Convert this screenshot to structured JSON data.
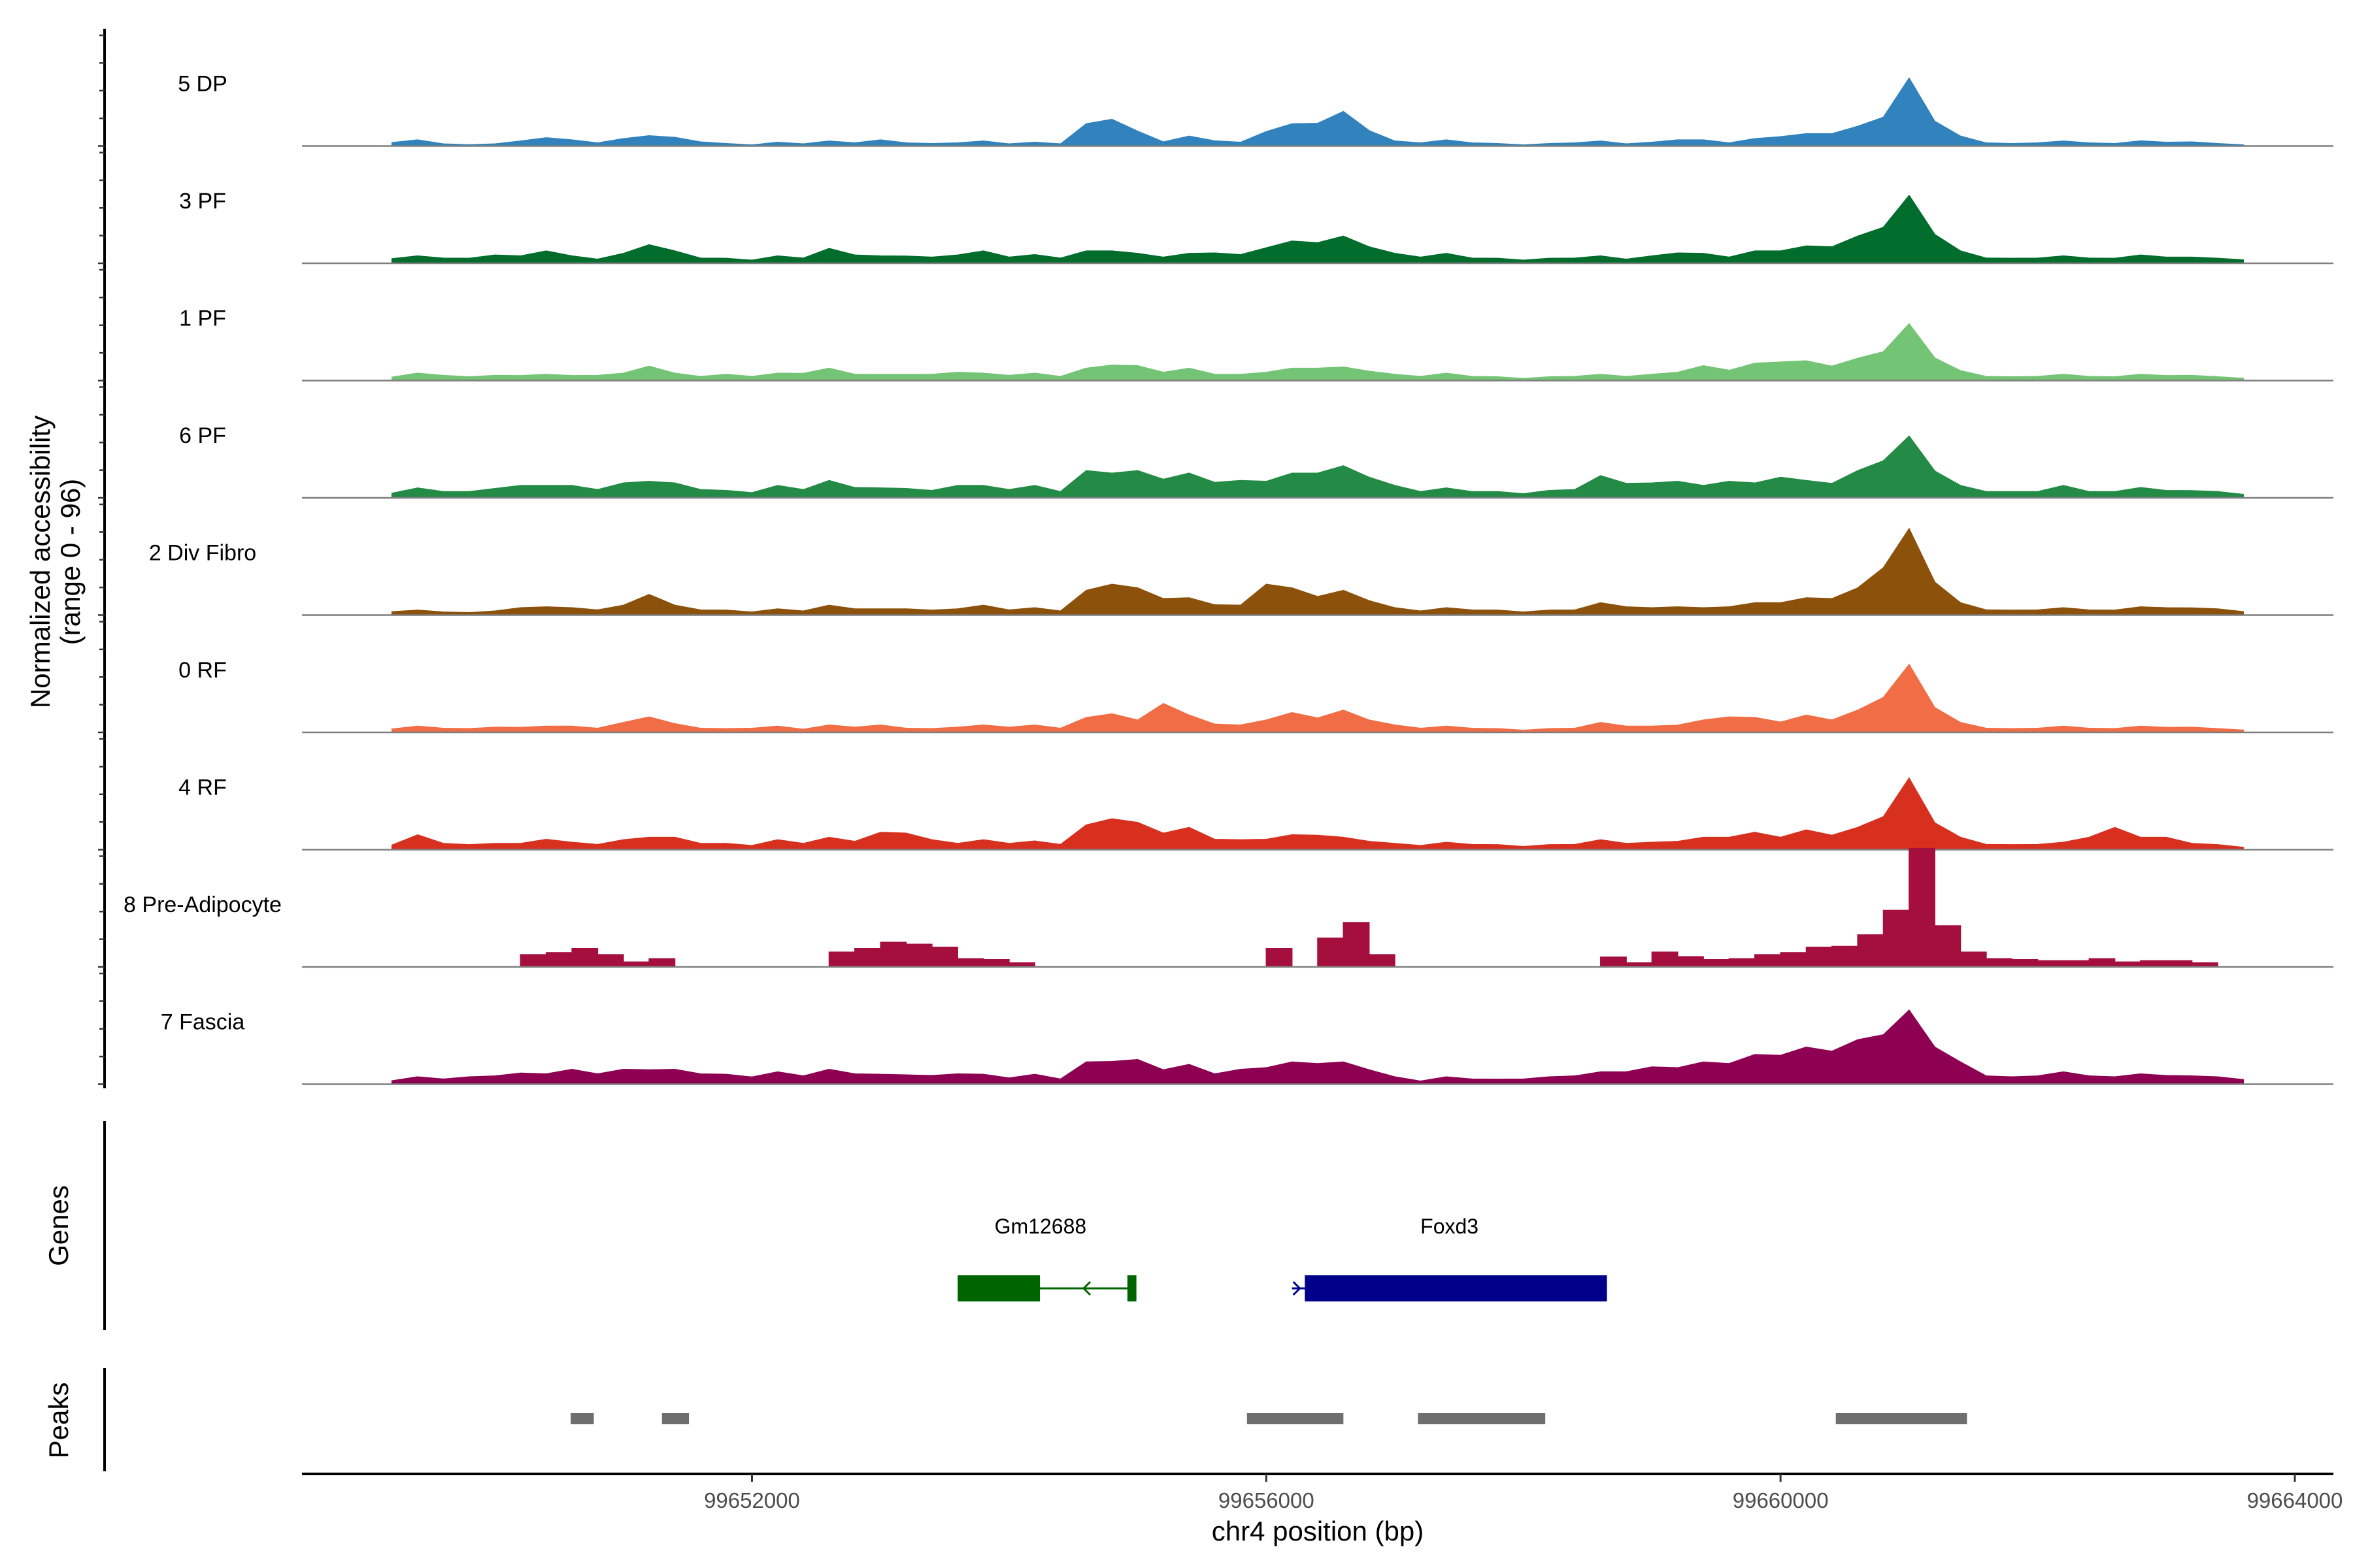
{
  "chart_data": {
    "type": "area",
    "title": "",
    "ylabel": "Normalized accessibility",
    "ylabel_range": "(range 0 - 96)",
    "y_range": [
      0,
      96
    ],
    "xlabel": "chr4 position (bp)",
    "xlim": [
      99648500,
      99664300
    ],
    "x_ticks": [
      99652000,
      99656000,
      99660000,
      99664000
    ],
    "x_tick_labels": [
      "99652000",
      "99656000",
      "99660000",
      "99664000"
    ],
    "region_start": 99649200,
    "region_end": 99663600,
    "tracks": [
      {
        "name": "5 DP",
        "color": "#3182BD",
        "profile": [
          3,
          5,
          2,
          1,
          2,
          4,
          8,
          5,
          3,
          6,
          10,
          7,
          4,
          2,
          1,
          3,
          2,
          4,
          3,
          5,
          3,
          2,
          3,
          4,
          2,
          3,
          2,
          18,
          26,
          12,
          4,
          8,
          5,
          3,
          14,
          18,
          22,
          28,
          15,
          4,
          3,
          5,
          3,
          2,
          1,
          2,
          3,
          4,
          2,
          3,
          6,
          5,
          3,
          6,
          9,
          10,
          12,
          16,
          28,
          55,
          24,
          8,
          3,
          2,
          3,
          4,
          3,
          2,
          5,
          3,
          4,
          2,
          1
        ]
      },
      {
        "name": "3 PF",
        "color": "#006D2C",
        "profile": [
          4,
          6,
          5,
          4,
          8,
          6,
          12,
          6,
          4,
          8,
          18,
          10,
          5,
          4,
          3,
          6,
          5,
          12,
          8,
          6,
          7,
          5,
          8,
          10,
          6,
          7,
          5,
          10,
          12,
          8,
          6,
          8,
          10,
          7,
          15,
          18,
          20,
          22,
          16,
          8,
          6,
          8,
          5,
          4,
          3,
          4,
          5,
          6,
          4,
          6,
          10,
          8,
          6,
          10,
          12,
          14,
          16,
          22,
          35,
          55,
          28,
          10,
          5,
          4,
          5,
          6,
          5,
          4,
          8,
          5,
          6,
          4,
          3
        ]
      },
      {
        "name": "1 PF",
        "color": "#74C476",
        "profile": [
          3,
          6,
          5,
          3,
          5,
          4,
          6,
          4,
          5,
          6,
          14,
          6,
          4,
          5,
          4,
          6,
          7,
          10,
          6,
          5,
          6,
          5,
          8,
          6,
          5,
          6,
          4,
          10,
          15,
          12,
          8,
          10,
          6,
          5,
          8,
          10,
          12,
          11,
          9,
          5,
          4,
          6,
          4,
          3,
          2,
          3,
          4,
          5,
          4,
          5,
          8,
          12,
          10,
          14,
          18,
          16,
          14,
          18,
          28,
          46,
          22,
          8,
          4,
          3,
          4,
          5,
          4,
          3,
          6,
          4,
          5,
          3,
          2
        ]
      },
      {
        "name": "6 PF",
        "color": "#238B45",
        "profile": [
          4,
          8,
          6,
          5,
          9,
          10,
          12,
          10,
          8,
          12,
          16,
          12,
          8,
          6,
          5,
          10,
          8,
          14,
          10,
          8,
          9,
          6,
          12,
          10,
          8,
          10,
          6,
          22,
          24,
          22,
          18,
          20,
          15,
          14,
          16,
          20,
          24,
          26,
          20,
          10,
          6,
          8,
          6,
          5,
          4,
          6,
          8,
          18,
          14,
          12,
          16,
          10,
          16,
          12,
          20,
          14,
          14,
          22,
          36,
          50,
          26,
          10,
          6,
          5,
          6,
          10,
          6,
          5,
          10,
          6,
          7,
          5,
          3
        ]
      },
      {
        "name": "2 Div Fibro",
        "color": "#8C510A",
        "profile": [
          3,
          4,
          3,
          2,
          4,
          6,
          8,
          6,
          5,
          8,
          20,
          8,
          5,
          4,
          3,
          5,
          4,
          8,
          6,
          5,
          6,
          4,
          6,
          8,
          5,
          6,
          4,
          20,
          30,
          22,
          16,
          14,
          10,
          8,
          30,
          22,
          18,
          20,
          14,
          6,
          4,
          6,
          5,
          4,
          3,
          4,
          5,
          10,
          8,
          6,
          8,
          6,
          8,
          10,
          12,
          14,
          16,
          22,
          46,
          70,
          32,
          10,
          5,
          4,
          5,
          6,
          5,
          4,
          8,
          6,
          7,
          5,
          3
        ]
      },
      {
        "name": "0 RF",
        "color": "#F16D45",
        "profile": [
          3,
          5,
          4,
          3,
          5,
          4,
          6,
          5,
          4,
          8,
          15,
          7,
          4,
          3,
          4,
          5,
          3,
          6,
          5,
          6,
          4,
          3,
          5,
          6,
          5,
          6,
          4,
          12,
          18,
          10,
          28,
          14,
          8,
          6,
          12,
          16,
          14,
          18,
          12,
          6,
          4,
          5,
          4,
          3,
          2,
          3,
          4,
          8,
          6,
          5,
          7,
          10,
          15,
          12,
          10,
          14,
          12,
          18,
          34,
          55,
          24,
          8,
          4,
          3,
          4,
          5,
          4,
          3,
          6,
          4,
          5,
          3,
          2
        ]
      },
      {
        "name": "4 RF",
        "color": "#D7301F",
        "profile": [
          4,
          12,
          6,
          4,
          6,
          5,
          10,
          6,
          5,
          8,
          12,
          10,
          6,
          5,
          4,
          8,
          6,
          10,
          8,
          14,
          16,
          8,
          6,
          8,
          6,
          7,
          5,
          20,
          30,
          22,
          16,
          18,
          10,
          8,
          10,
          12,
          14,
          10,
          8,
          5,
          4,
          6,
          5,
          4,
          3,
          4,
          5,
          8,
          6,
          6,
          8,
          10,
          12,
          14,
          12,
          16,
          14,
          18,
          32,
          58,
          26,
          10,
          5,
          4,
          5,
          6,
          12,
          18,
          12,
          10,
          6,
          4,
          2
        ]
      },
      {
        "name": "8 Pre-Adipocyte",
        "color": "#A50F3E",
        "profile": [
          0,
          0,
          0,
          0,
          0,
          10,
          14,
          15,
          12,
          4,
          8,
          0,
          0,
          0,
          0,
          0,
          0,
          12,
          18,
          20,
          22,
          16,
          8,
          6,
          4,
          0,
          0,
          0,
          0,
          0,
          0,
          0,
          0,
          0,
          18,
          0,
          28,
          36,
          12,
          0,
          0,
          0,
          0,
          0,
          0,
          0,
          0,
          8,
          4,
          12,
          10,
          6,
          8,
          10,
          14,
          16,
          20,
          26,
          55,
          96,
          40,
          12,
          8,
          6,
          6,
          5,
          8,
          4,
          6,
          5,
          4,
          0,
          0
        ]
      },
      {
        "name": "7 Fascia",
        "color": "#8E0152",
        "profile": [
          3,
          6,
          5,
          6,
          8,
          9,
          10,
          12,
          10,
          12,
          14,
          12,
          10,
          8,
          7,
          10,
          8,
          12,
          10,
          8,
          9,
          7,
          10,
          8,
          6,
          8,
          5,
          18,
          22,
          20,
          14,
          16,
          10,
          12,
          16,
          18,
          20,
          18,
          14,
          6,
          3,
          6,
          5,
          4,
          5,
          6,
          8,
          10,
          12,
          14,
          16,
          18,
          20,
          24,
          28,
          30,
          32,
          36,
          48,
          60,
          36,
          18,
          8,
          6,
          8,
          10,
          8,
          6,
          10,
          7,
          8,
          6,
          4
        ]
      }
    ],
    "genes": {
      "panel_title": "Genes",
      "items": [
        {
          "name": "Gm12688",
          "strand": "-",
          "start": 99653600,
          "end": 99654990,
          "exons": [
            [
              99653600,
              99654240
            ],
            [
              99654920,
              99654990
            ]
          ]
        },
        {
          "name": "Foxd3",
          "strand": "+",
          "start": 99656200,
          "end": 99658650,
          "exons": [
            [
              99656300,
              99658650
            ]
          ]
        }
      ]
    },
    "peaks": {
      "panel_title": "Peaks",
      "items": [
        [
          99650590,
          99650770
        ],
        [
          99651300,
          99651510
        ],
        [
          99655850,
          99656600
        ],
        [
          99657180,
          99658170
        ],
        [
          99660430,
          99661450
        ]
      ]
    },
    "colors": {
      "gene_gm12688": "#006400",
      "gene_foxd3": "#00008B",
      "peak": "#6E6E6E",
      "baseline": "#7F7F7F"
    }
  }
}
